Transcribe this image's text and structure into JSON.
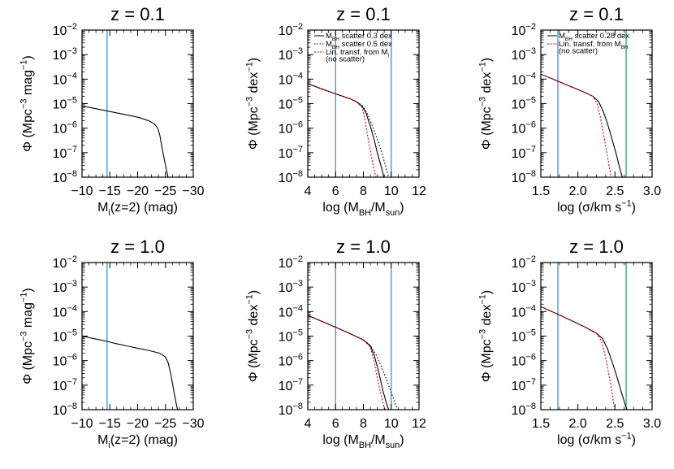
{
  "chart_data": [
    {
      "type": "line",
      "title": "z = 0.1",
      "xlabel": "M_i(z=2) (mag)",
      "ylabel": "Φ (Mpc^-3 mag^-1)",
      "xlim": [
        -10,
        -30
      ],
      "ylog": true,
      "ylim": [
        1e-08,
        0.01
      ],
      "xticks": [
        "−10",
        "−15",
        "−20",
        "−25",
        "−30"
      ],
      "vlines": [
        {
          "x": -14.5,
          "color": "#3a8ee6"
        }
      ],
      "series": [
        {
          "style": "solid",
          "color": "#000000",
          "x": [
            -10,
            -12,
            -14,
            -16,
            -18,
            -20,
            -21,
            -22,
            -23,
            -23.6,
            -24,
            -24.4,
            -24.9,
            -25.3,
            -25.7
          ],
          "y": [
            8e-06,
            6.5e-06,
            5.3e-06,
            4.3e-06,
            3.5e-06,
            2.8e-06,
            2.4e-06,
            2e-06,
            1.5e-06,
            1e-06,
            5e-07,
            1.5e-07,
            4e-08,
            1.5e-08,
            6e-09
          ]
        }
      ]
    },
    {
      "type": "line",
      "title": "z = 0.1",
      "xlabel": "log (M_BH/M_sun)",
      "ylabel": "Φ (Mpc^-3 dex^-1)",
      "xlim": [
        4,
        12
      ],
      "ylog": true,
      "ylim": [
        1e-08,
        0.01
      ],
      "xticks": [
        "4",
        "6",
        "8",
        "10",
        "12"
      ],
      "vlines": [
        {
          "x": 6.0,
          "color": "#3a8ee6"
        },
        {
          "x": 10.0,
          "color": "#3a8ee6"
        }
      ],
      "legend": {
        "position": "top-right",
        "entries": [
          {
            "label": "M_BH scatter 0.3 dex",
            "style": "solid",
            "color": "#000000"
          },
          {
            "label": "M_BH scatter 0.5 dex",
            "style": "dotted",
            "color": "#000000"
          },
          {
            "label": "Lin. transf. from M_i (no scatter)",
            "style": "dashed",
            "color": "#cc0000"
          }
        ]
      },
      "series": [
        {
          "name": "M_BH scatter 0.3 dex",
          "style": "solid",
          "color": "#000000",
          "x": [
            4,
            5,
            6,
            7,
            7.5,
            7.9,
            8.2,
            8.5,
            8.8,
            9.0,
            9.2,
            9.4,
            9.55
          ],
          "y": [
            6.5e-05,
            4e-05,
            2.5e-05,
            1.6e-05,
            1.2e-05,
            8e-06,
            4e-06,
            1.2e-06,
            3e-07,
            1e-07,
            4e-08,
            1.5e-08,
            6e-09
          ]
        },
        {
          "name": "M_BH scatter 0.5 dex",
          "style": "dotted",
          "color": "#000000",
          "x": [
            4,
            5,
            6,
            7,
            7.5,
            7.9,
            8.2,
            8.5,
            8.8,
            9.1,
            9.4,
            9.7,
            9.9
          ],
          "y": [
            6.5e-05,
            4e-05,
            2.5e-05,
            1.6e-05,
            1.2e-05,
            8.5e-06,
            5e-06,
            2e-06,
            7e-07,
            2.5e-07,
            7e-08,
            1.8e-08,
            7e-09
          ]
        },
        {
          "name": "Lin. transf. from M_i (no scatter)",
          "style": "dashed",
          "color": "#cc0000",
          "x": [
            4,
            5,
            6,
            7,
            7.5,
            7.9,
            8.1,
            8.3,
            8.5,
            8.7,
            8.9,
            9.05
          ],
          "y": [
            6.5e-05,
            4e-05,
            2.5e-05,
            1.6e-05,
            1.2e-05,
            7e-06,
            2.5e-06,
            5e-07,
            1.2e-07,
            3e-08,
            1e-08,
            6e-09
          ]
        }
      ]
    },
    {
      "type": "line",
      "title": "z = 0.1",
      "xlabel": "log (σ/km s^-1)",
      "ylabel": "Φ (Mpc^-3 dex^-1)",
      "xlim": [
        1.5,
        3.0
      ],
      "ylog": true,
      "ylim": [
        1e-08,
        0.01
      ],
      "xticks": [
        "1.5",
        "2.0",
        "2.5",
        "3.0"
      ],
      "vlines": [
        {
          "x": 1.73,
          "color": "#3a8ee6"
        },
        {
          "x": 2.65,
          "color": "#2a9d8f"
        }
      ],
      "legend": {
        "position": "top-right",
        "entries": [
          {
            "label": "M_BH scatter 0.28 dex",
            "style": "solid",
            "color": "#000000"
          },
          {
            "label": "Lin. transf. from M_BH (no scatter)",
            "style": "dashed",
            "color": "#cc0000"
          }
        ]
      },
      "series": [
        {
          "name": "M_BH scatter 0.28 dex",
          "style": "solid",
          "color": "#000000",
          "x": [
            1.5,
            1.7,
            1.9,
            2.1,
            2.2,
            2.28,
            2.34,
            2.4,
            2.46,
            2.52,
            2.57,
            2.62
          ],
          "y": [
            0.00016,
            9e-05,
            5e-05,
            2.8e-05,
            2e-05,
            1.2e-05,
            5e-06,
            1.5e-06,
            3.5e-07,
            8e-08,
            2e-08,
            6e-09
          ]
        },
        {
          "name": "Lin. transf. from M_BH (no scatter)",
          "style": "dashed",
          "color": "#cc0000",
          "x": [
            1.5,
            1.7,
            1.9,
            2.1,
            2.2,
            2.26,
            2.3,
            2.34,
            2.38,
            2.42,
            2.46
          ],
          "y": [
            0.00016,
            9e-05,
            5e-05,
            2.8e-05,
            2e-05,
            1e-05,
            3e-06,
            7e-07,
            1.5e-07,
            3e-08,
            6e-09
          ]
        }
      ]
    },
    {
      "type": "line",
      "title": "z = 1.0",
      "xlabel": "M_i(z=2) (mag)",
      "ylabel": "Φ (Mpc^-3 mag^-1)",
      "xlim": [
        -10,
        -30
      ],
      "ylog": true,
      "ylim": [
        1e-08,
        0.01
      ],
      "xticks": [
        "−10",
        "−15",
        "−20",
        "−25",
        "−30"
      ],
      "vlines": [
        {
          "x": -14.5,
          "color": "#3a8ee6"
        }
      ],
      "series": [
        {
          "style": "solid",
          "color": "#000000",
          "x": [
            -10,
            -12,
            -14,
            -16,
            -18,
            -20,
            -22,
            -24,
            -25,
            -25.5,
            -26,
            -26.5,
            -27,
            -27.4
          ],
          "y": [
            1e-05,
            8e-06,
            6.5e-06,
            5e-06,
            4e-06,
            3.2e-06,
            2.6e-06,
            2e-06,
            1.4e-06,
            8e-07,
            2.5e-07,
            6e-08,
            1.5e-08,
            6e-09
          ]
        }
      ]
    },
    {
      "type": "line",
      "title": "z = 1.0",
      "xlabel": "log (M_BH/M_sun)",
      "ylabel": "Φ (Mpc^-3 dex^-1)",
      "xlim": [
        4,
        12
      ],
      "ylog": true,
      "ylim": [
        1e-08,
        0.01
      ],
      "xticks": [
        "4",
        "6",
        "8",
        "10",
        "12"
      ],
      "vlines": [
        {
          "x": 6.0,
          "color": "#3a8ee6"
        },
        {
          "x": 10.0,
          "color": "#3a8ee6"
        }
      ],
      "series": [
        {
          "style": "solid",
          "color": "#000000",
          "x": [
            4,
            5,
            6,
            7,
            8,
            8.5,
            8.8,
            9.1,
            9.4,
            9.7,
            9.9,
            10.1
          ],
          "y": [
            7e-05,
            4e-05,
            2.3e-05,
            1.3e-05,
            7e-06,
            4e-06,
            1.5e-06,
            3.5e-07,
            6e-08,
            1.5e-08,
            8e-09,
            5e-09
          ]
        },
        {
          "style": "dotted",
          "color": "#000000",
          "x": [
            4,
            5,
            6,
            7,
            8,
            8.5,
            8.9,
            9.3,
            9.7,
            10.1,
            10.4,
            10.6
          ],
          "y": [
            7e-05,
            4e-05,
            2.3e-05,
            1.3e-05,
            7e-06,
            4.2e-06,
            1.8e-06,
            5.5e-07,
            1.5e-07,
            3.5e-08,
            1.2e-08,
            6e-09
          ]
        },
        {
          "style": "dashed",
          "color": "#cc0000",
          "x": [
            4,
            5,
            6,
            7,
            8,
            8.5,
            8.8,
            9.0,
            9.2,
            9.4,
            9.6,
            9.75
          ],
          "y": [
            7e-05,
            4e-05,
            2.3e-05,
            1.3e-05,
            7e-06,
            3.5e-06,
            8e-07,
            2e-07,
            6e-08,
            2e-08,
            8e-09,
            5e-09
          ]
        }
      ]
    },
    {
      "type": "line",
      "title": "z = 1.0",
      "xlabel": "log (σ/km s^-1)",
      "ylabel": "Φ (Mpc^-3 dex^-1)",
      "xlim": [
        1.5,
        3.0
      ],
      "ylog": true,
      "ylim": [
        1e-08,
        0.01
      ],
      "xticks": [
        "1.5",
        "2.0",
        "2.5",
        "3.0"
      ],
      "vlines": [
        {
          "x": 1.73,
          "color": "#3a8ee6"
        },
        {
          "x": 2.65,
          "color": "#2a9d8f"
        }
      ],
      "series": [
        {
          "style": "solid",
          "color": "#000000",
          "x": [
            1.5,
            1.7,
            1.9,
            2.1,
            2.25,
            2.33,
            2.4,
            2.46,
            2.52,
            2.58,
            2.64,
            2.7
          ],
          "y": [
            0.00016,
            8.5e-05,
            4.5e-05,
            2.3e-05,
            1.3e-05,
            8e-06,
            3e-06,
            9e-07,
            2.5e-07,
            6e-08,
            1.5e-08,
            5e-09
          ]
        },
        {
          "style": "dashed",
          "color": "#cc0000",
          "x": [
            1.5,
            1.7,
            1.9,
            2.1,
            2.25,
            2.32,
            2.37,
            2.41,
            2.45,
            2.48,
            2.51
          ],
          "y": [
            0.00016,
            8.5e-05,
            4.5e-05,
            2.3e-05,
            1.3e-05,
            6e-06,
            1.5e-06,
            3.5e-07,
            8e-08,
            2e-08,
            6e-09
          ]
        }
      ]
    }
  ]
}
